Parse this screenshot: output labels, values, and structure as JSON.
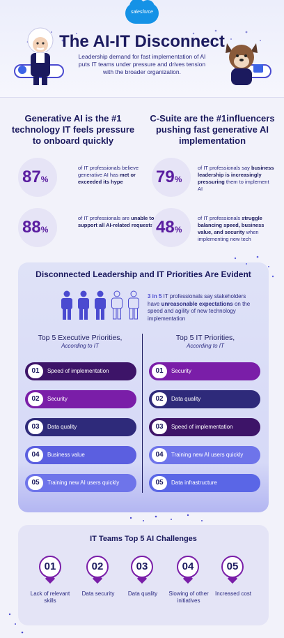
{
  "brand": {
    "logo_text": "salesforce",
    "logo_color": "#1592e6"
  },
  "header": {
    "title": "The AI-IT Disconnect",
    "subtitle": "Leadership demand for fast implementation of AI puts IT teams under pressure and drives tension with the broader organization."
  },
  "left_column": {
    "heading": "Generative AI is the #1 technology IT feels pressure to onboard quickly",
    "stats": [
      {
        "value": "87",
        "unit": "%",
        "text_pre": "of IT professionals believe generative AI has ",
        "text_bold": "met or exceeded its hype",
        "text_post": ""
      },
      {
        "value": "88",
        "unit": "%",
        "text_pre": "of IT professionals are ",
        "text_bold": "unable to support all AI-related requests",
        "text_post": ""
      }
    ]
  },
  "right_column": {
    "heading": "C-Suite are the #1influencers pushing fast generative AI implementation",
    "stats": [
      {
        "value": "79",
        "unit": "%",
        "text_pre": "of IT professionals say ",
        "text_bold": "business leadership is increasingly pressuring",
        "text_post": " them to implement AI"
      },
      {
        "value": "48",
        "unit": "%",
        "text_pre": "of IT professionals ",
        "text_bold": "struggle balancing speed, business value, and security",
        "text_post": " when implementing new tech"
      }
    ]
  },
  "priorities": {
    "title": "Disconnected Leadership and IT Priorities Are Evident",
    "ratio": "3 in 5",
    "ratio_text_1": " IT professionals say stakeholders have ",
    "ratio_bold": "unreasonable expectations",
    "ratio_text_2": " on the speed and agility of new technology implementation",
    "people_filled": 3,
    "people_total": 5,
    "executive": {
      "heading": "Top 5 Executive Priorities,",
      "subheading": "According to IT",
      "items": [
        {
          "num": "01",
          "label": "Speed of implementation"
        },
        {
          "num": "02",
          "label": "Security"
        },
        {
          "num": "03",
          "label": "Data quality"
        },
        {
          "num": "04",
          "label": "Business value"
        },
        {
          "num": "05",
          "label": "Training new AI users quickly"
        }
      ]
    },
    "it": {
      "heading": "Top 5 IT Priorities,",
      "subheading": "According to IT",
      "items": [
        {
          "num": "01",
          "label": "Security"
        },
        {
          "num": "02",
          "label": "Data quality"
        },
        {
          "num": "03",
          "label": "Speed of implementation"
        },
        {
          "num": "04",
          "label": "Training new AI users quickly"
        },
        {
          "num": "05",
          "label": "Data infrastructure"
        }
      ]
    },
    "colors": {
      "Speed of implementation": "#3d1468",
      "Security": "#7a1ea8",
      "Data quality": "#2e2a7a",
      "Business value": "#5b5fe0",
      "Training new AI users quickly": "#6e74ea",
      "Data infrastructure": "#5a66e6"
    }
  },
  "challenges": {
    "title": "IT Teams Top 5 AI Challenges",
    "items": [
      {
        "num": "01",
        "label": "Lack of relevant skills"
      },
      {
        "num": "02",
        "label": "Data security"
      },
      {
        "num": "03",
        "label": "Data quality"
      },
      {
        "num": "04",
        "label": "Slowing of other initiatives"
      },
      {
        "num": "05",
        "label": "Increased cost"
      }
    ]
  }
}
